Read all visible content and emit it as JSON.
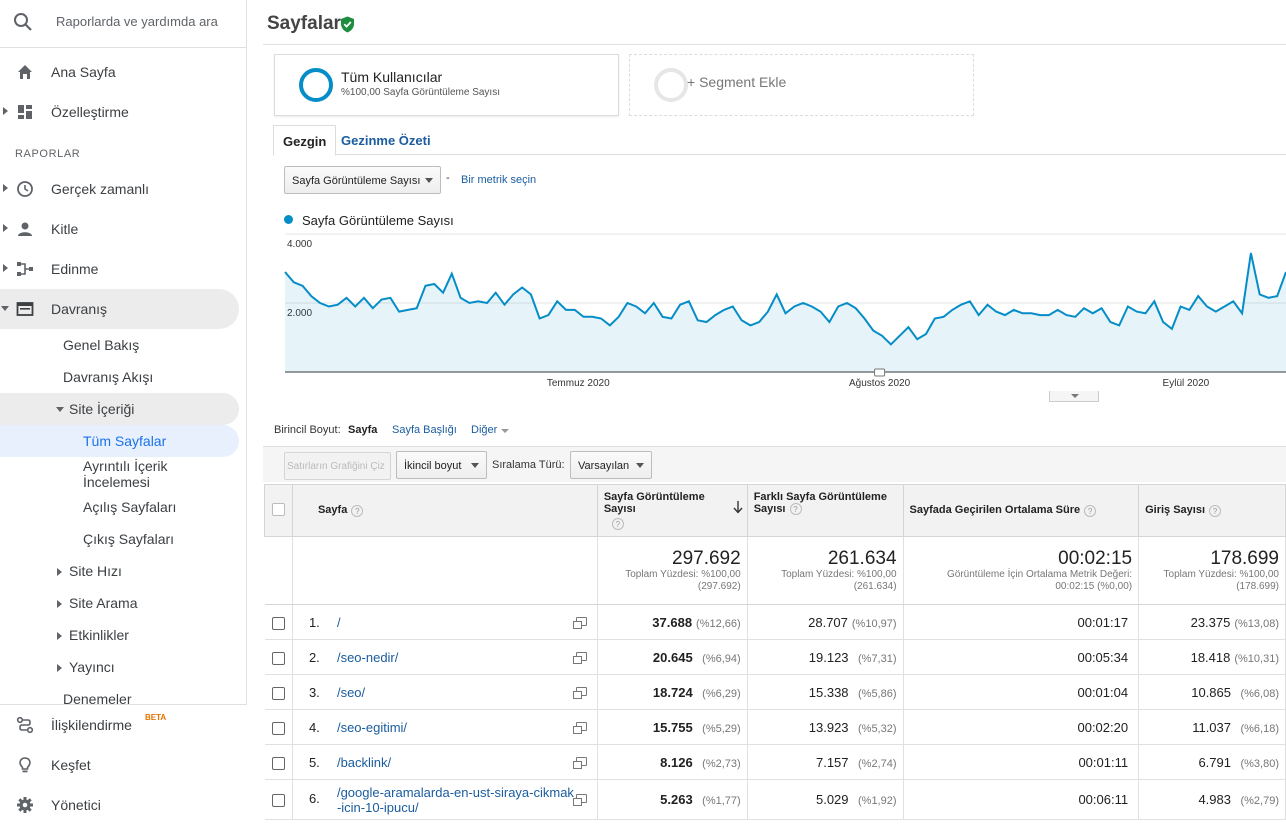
{
  "search": {
    "placeholder": "Raporlarda ve yardımda ara"
  },
  "nav": {
    "home": "Ana Sayfa",
    "customize": "Özelleştirme",
    "section_reports": "RAPORLAR",
    "realtime": "Gerçek zamanlı",
    "audience": "Kitle",
    "acquisition": "Edinme",
    "behavior": "Davranış",
    "behavior_sub": {
      "overview": "Genel Bakış",
      "flow": "Davranış Akışı",
      "site_content": "Site İçeriği",
      "all_pages": "Tüm Sayfalar",
      "drilldown": "Ayrıntılı İçerik İncelemesi",
      "landing": "Açılış Sayfaları",
      "exit": "Çıkış Sayfaları",
      "site_speed": "Site Hızı",
      "site_search": "Site Arama",
      "events": "Etkinlikler",
      "publisher": "Yayıncı",
      "experiments": "Denemeler"
    },
    "attribution": "İlişkilendirme",
    "attribution_badge": "BETA",
    "discover": "Keşfet",
    "admin": "Yönetici"
  },
  "page": {
    "title": "Sayfalar"
  },
  "segments": {
    "seg1_name": "Tüm Kullanıcılar",
    "seg1_sub": "%100,00 Sayfa Görüntüleme Sayısı",
    "add": "+ Segment Ekle"
  },
  "tabs": {
    "explorer": "Gezgin",
    "navigation": "Gezinme Özeti"
  },
  "metric": {
    "selected": "Sayfa Görüntüleme Sayısı",
    "dash": "-",
    "choose": "Bir metrik seçin"
  },
  "colors": {
    "accent": "#058dc7",
    "link": "#1a5c9e"
  },
  "chart_data": {
    "type": "area",
    "legend": "Sayfa Görüntüleme Sayısı",
    "y_ticks": [
      "4.000",
      "2.000"
    ],
    "ylim": [
      0,
      4000
    ],
    "x_labels": [
      "Temmuz 2020",
      "Ağustos 2020",
      "Eylül 2020"
    ],
    "series": [
      {
        "name": "Sayfa Görüntüleme Sayısı",
        "values": [
          2900,
          2600,
          2500,
          2200,
          2000,
          1900,
          1950,
          2150,
          1900,
          2150,
          1850,
          2100,
          2150,
          1750,
          1800,
          1850,
          2500,
          2550,
          2300,
          2850,
          2150,
          2000,
          2050,
          2000,
          2300,
          1950,
          2250,
          2450,
          2250,
          1550,
          1650,
          2050,
          1800,
          1800,
          1600,
          1600,
          1550,
          1350,
          1600,
          2000,
          1900,
          1700,
          2000,
          1600,
          1550,
          1950,
          2050,
          1500,
          1450,
          1650,
          1800,
          1900,
          1500,
          1350,
          1450,
          1750,
          2250,
          1700,
          1900,
          2000,
          1900,
          1750,
          1450,
          1900,
          2000,
          1850,
          1550,
          1200,
          1050,
          800,
          1050,
          1300,
          950,
          1100,
          1550,
          1600,
          1800,
          1950,
          2050,
          1650,
          1950,
          1750,
          1650,
          1800,
          1700,
          1700,
          1650,
          1650,
          1800,
          1650,
          1600,
          1850,
          1700,
          1850,
          1450,
          1350,
          1900,
          1750,
          1700,
          2050,
          1450,
          1250,
          1900,
          1800,
          2200,
          1900,
          1750,
          1900,
          2050,
          1700,
          3450,
          2250,
          2150,
          2200,
          2900
        ]
      }
    ]
  },
  "dimension": {
    "label": "Birincil Boyut:",
    "page": "Sayfa",
    "page_title": "Sayfa Başlığı",
    "other": "Diğer"
  },
  "toolbar": {
    "plot_rows": "Satırların Grafiğini Çiz",
    "secondary": "İkincil boyut",
    "sort_label": "Sıralama Türü:",
    "sort_value": "Varsayılan"
  },
  "table": {
    "headers": {
      "page": "Sayfa",
      "pageviews": "Sayfa Görüntüleme Sayısı",
      "unique": "Farklı Sayfa Görüntüleme Sayısı",
      "avg_time": "Sayfada Geçirilen Ortalama Süre",
      "entrances": "Giriş Sayısı"
    },
    "qm": "?",
    "totals": {
      "pageviews": "297.692",
      "pageviews_sub1": "Toplam Yüzdesi: %100,00",
      "pageviews_sub2": "(297.692)",
      "unique": "261.634",
      "unique_sub1": "Toplam Yüzdesi: %100,00",
      "unique_sub2": "(261.634)",
      "avg_time": "00:02:15",
      "avg_time_sub1": "Görüntüleme İçin Ortalama Metrik Değeri:",
      "avg_time_sub2": "00:02:15 (%0,00)",
      "entrances": "178.699",
      "entrances_sub1": "Toplam Yüzdesi: %100,00",
      "entrances_sub2": "(178.699)"
    },
    "rows": [
      {
        "n": "1.",
        "page": "/",
        "pv": "37.688",
        "pvp": "(%12,66)",
        "u": "28.707",
        "up": "(%10,97)",
        "t": "00:01:17",
        "e": "23.375",
        "ep": "(%13,08)"
      },
      {
        "n": "2.",
        "page": "/seo-nedir/",
        "pv": "20.645",
        "pvp": "(%6,94)",
        "u": "19.123",
        "up": "(%7,31)",
        "t": "00:05:34",
        "e": "18.418",
        "ep": "(%10,31)"
      },
      {
        "n": "3.",
        "page": "/seo/",
        "pv": "18.724",
        "pvp": "(%6,29)",
        "u": "15.338",
        "up": "(%5,86)",
        "t": "00:01:04",
        "e": "10.865",
        "ep": "(%6,08)"
      },
      {
        "n": "4.",
        "page": "/seo-egitimi/",
        "pv": "15.755",
        "pvp": "(%5,29)",
        "u": "13.923",
        "up": "(%5,32)",
        "t": "00:02:20",
        "e": "11.037",
        "ep": "(%6,18)"
      },
      {
        "n": "5.",
        "page": "/backlink/",
        "pv": "8.126",
        "pvp": "(%2,73)",
        "u": "7.157",
        "up": "(%2,74)",
        "t": "00:01:11",
        "e": "6.791",
        "ep": "(%3,80)"
      },
      {
        "n": "6.",
        "page": "/google-aramalarda-en-ust-siraya-cikmak-icin-10-ipucu/",
        "pv": "5.263",
        "pvp": "(%1,77)",
        "u": "5.029",
        "up": "(%1,92)",
        "t": "00:06:11",
        "e": "4.983",
        "ep": "(%2,79)"
      }
    ]
  }
}
